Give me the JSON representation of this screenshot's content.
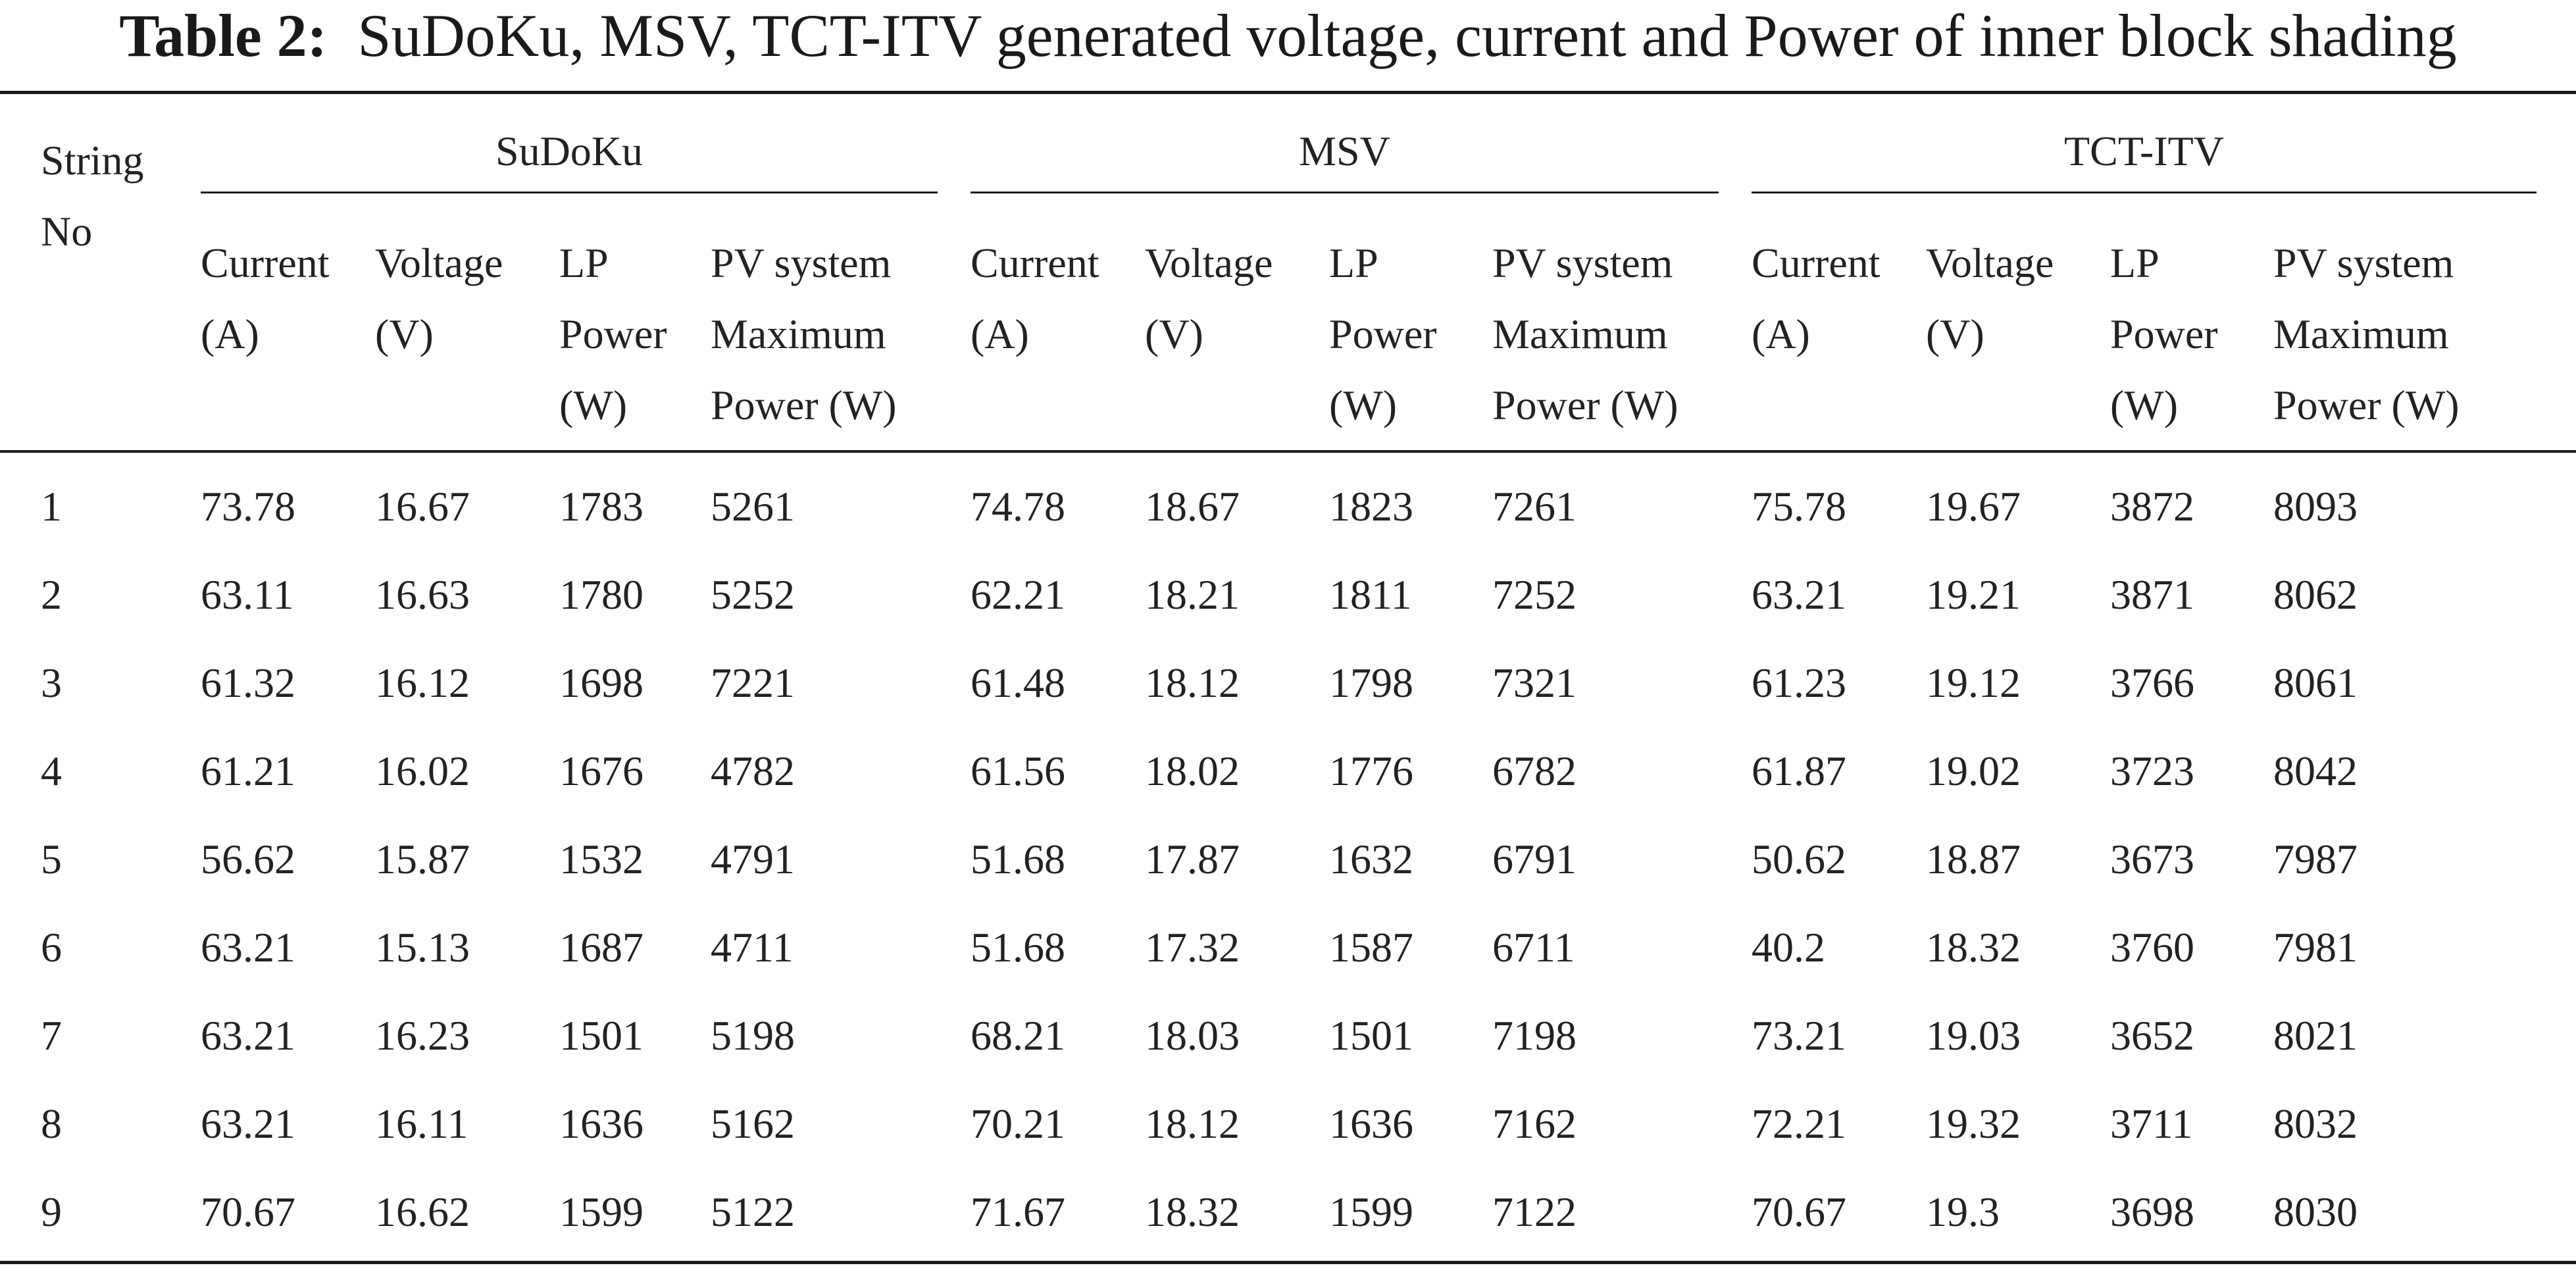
{
  "caption": {
    "label": "Table 2:",
    "text": "SuDoKu, MSV, TCT-ITV generated voltage, current and Power of inner block shading"
  },
  "table": {
    "row_header": [
      "String",
      "No"
    ],
    "groups": [
      "SuDoKu",
      "MSV",
      "TCT-ITV"
    ],
    "subheaders": [
      [
        "Current",
        "(A)"
      ],
      [
        "Voltage",
        "(V)"
      ],
      [
        "LP",
        "Power",
        "(W)"
      ],
      [
        "PV system",
        "Maximum",
        "Power (W)"
      ]
    ],
    "rows": [
      [
        "1",
        "73.78",
        "16.67",
        "1783",
        "5261",
        "74.78",
        "18.67",
        "1823",
        "7261",
        "75.78",
        "19.67",
        "3872",
        "8093"
      ],
      [
        "2",
        "63.11",
        "16.63",
        "1780",
        "5252",
        "62.21",
        "18.21",
        "1811",
        "7252",
        "63.21",
        "19.21",
        "3871",
        "8062"
      ],
      [
        "3",
        "61.32",
        "16.12",
        "1698",
        "7221",
        "61.48",
        "18.12",
        "1798",
        "7321",
        "61.23",
        "19.12",
        "3766",
        "8061"
      ],
      [
        "4",
        "61.21",
        "16.02",
        "1676",
        "4782",
        "61.56",
        "18.02",
        "1776",
        "6782",
        "61.87",
        "19.02",
        "3723",
        "8042"
      ],
      [
        "5",
        "56.62",
        "15.87",
        "1532",
        "4791",
        "51.68",
        "17.87",
        "1632",
        "6791",
        "50.62",
        "18.87",
        "3673",
        "7987"
      ],
      [
        "6",
        "63.21",
        "15.13",
        "1687",
        "4711",
        "51.68",
        "17.32",
        "1587",
        "6711",
        "40.2",
        "18.32",
        "3760",
        "7981"
      ],
      [
        "7",
        "63.21",
        "16.23",
        "1501",
        "5198",
        "68.21",
        "18.03",
        "1501",
        "7198",
        "73.21",
        "19.03",
        "3652",
        "8021"
      ],
      [
        "8",
        "63.21",
        "16.11",
        "1636",
        "5162",
        "70.21",
        "18.12",
        "1636",
        "7162",
        "72.21",
        "19.32",
        "3711",
        "8032"
      ],
      [
        "9",
        "70.67",
        "16.62",
        "1599",
        "5122",
        "71.67",
        "18.32",
        "1599",
        "7122",
        "70.67",
        "19.3",
        "3698",
        "8030"
      ]
    ]
  }
}
